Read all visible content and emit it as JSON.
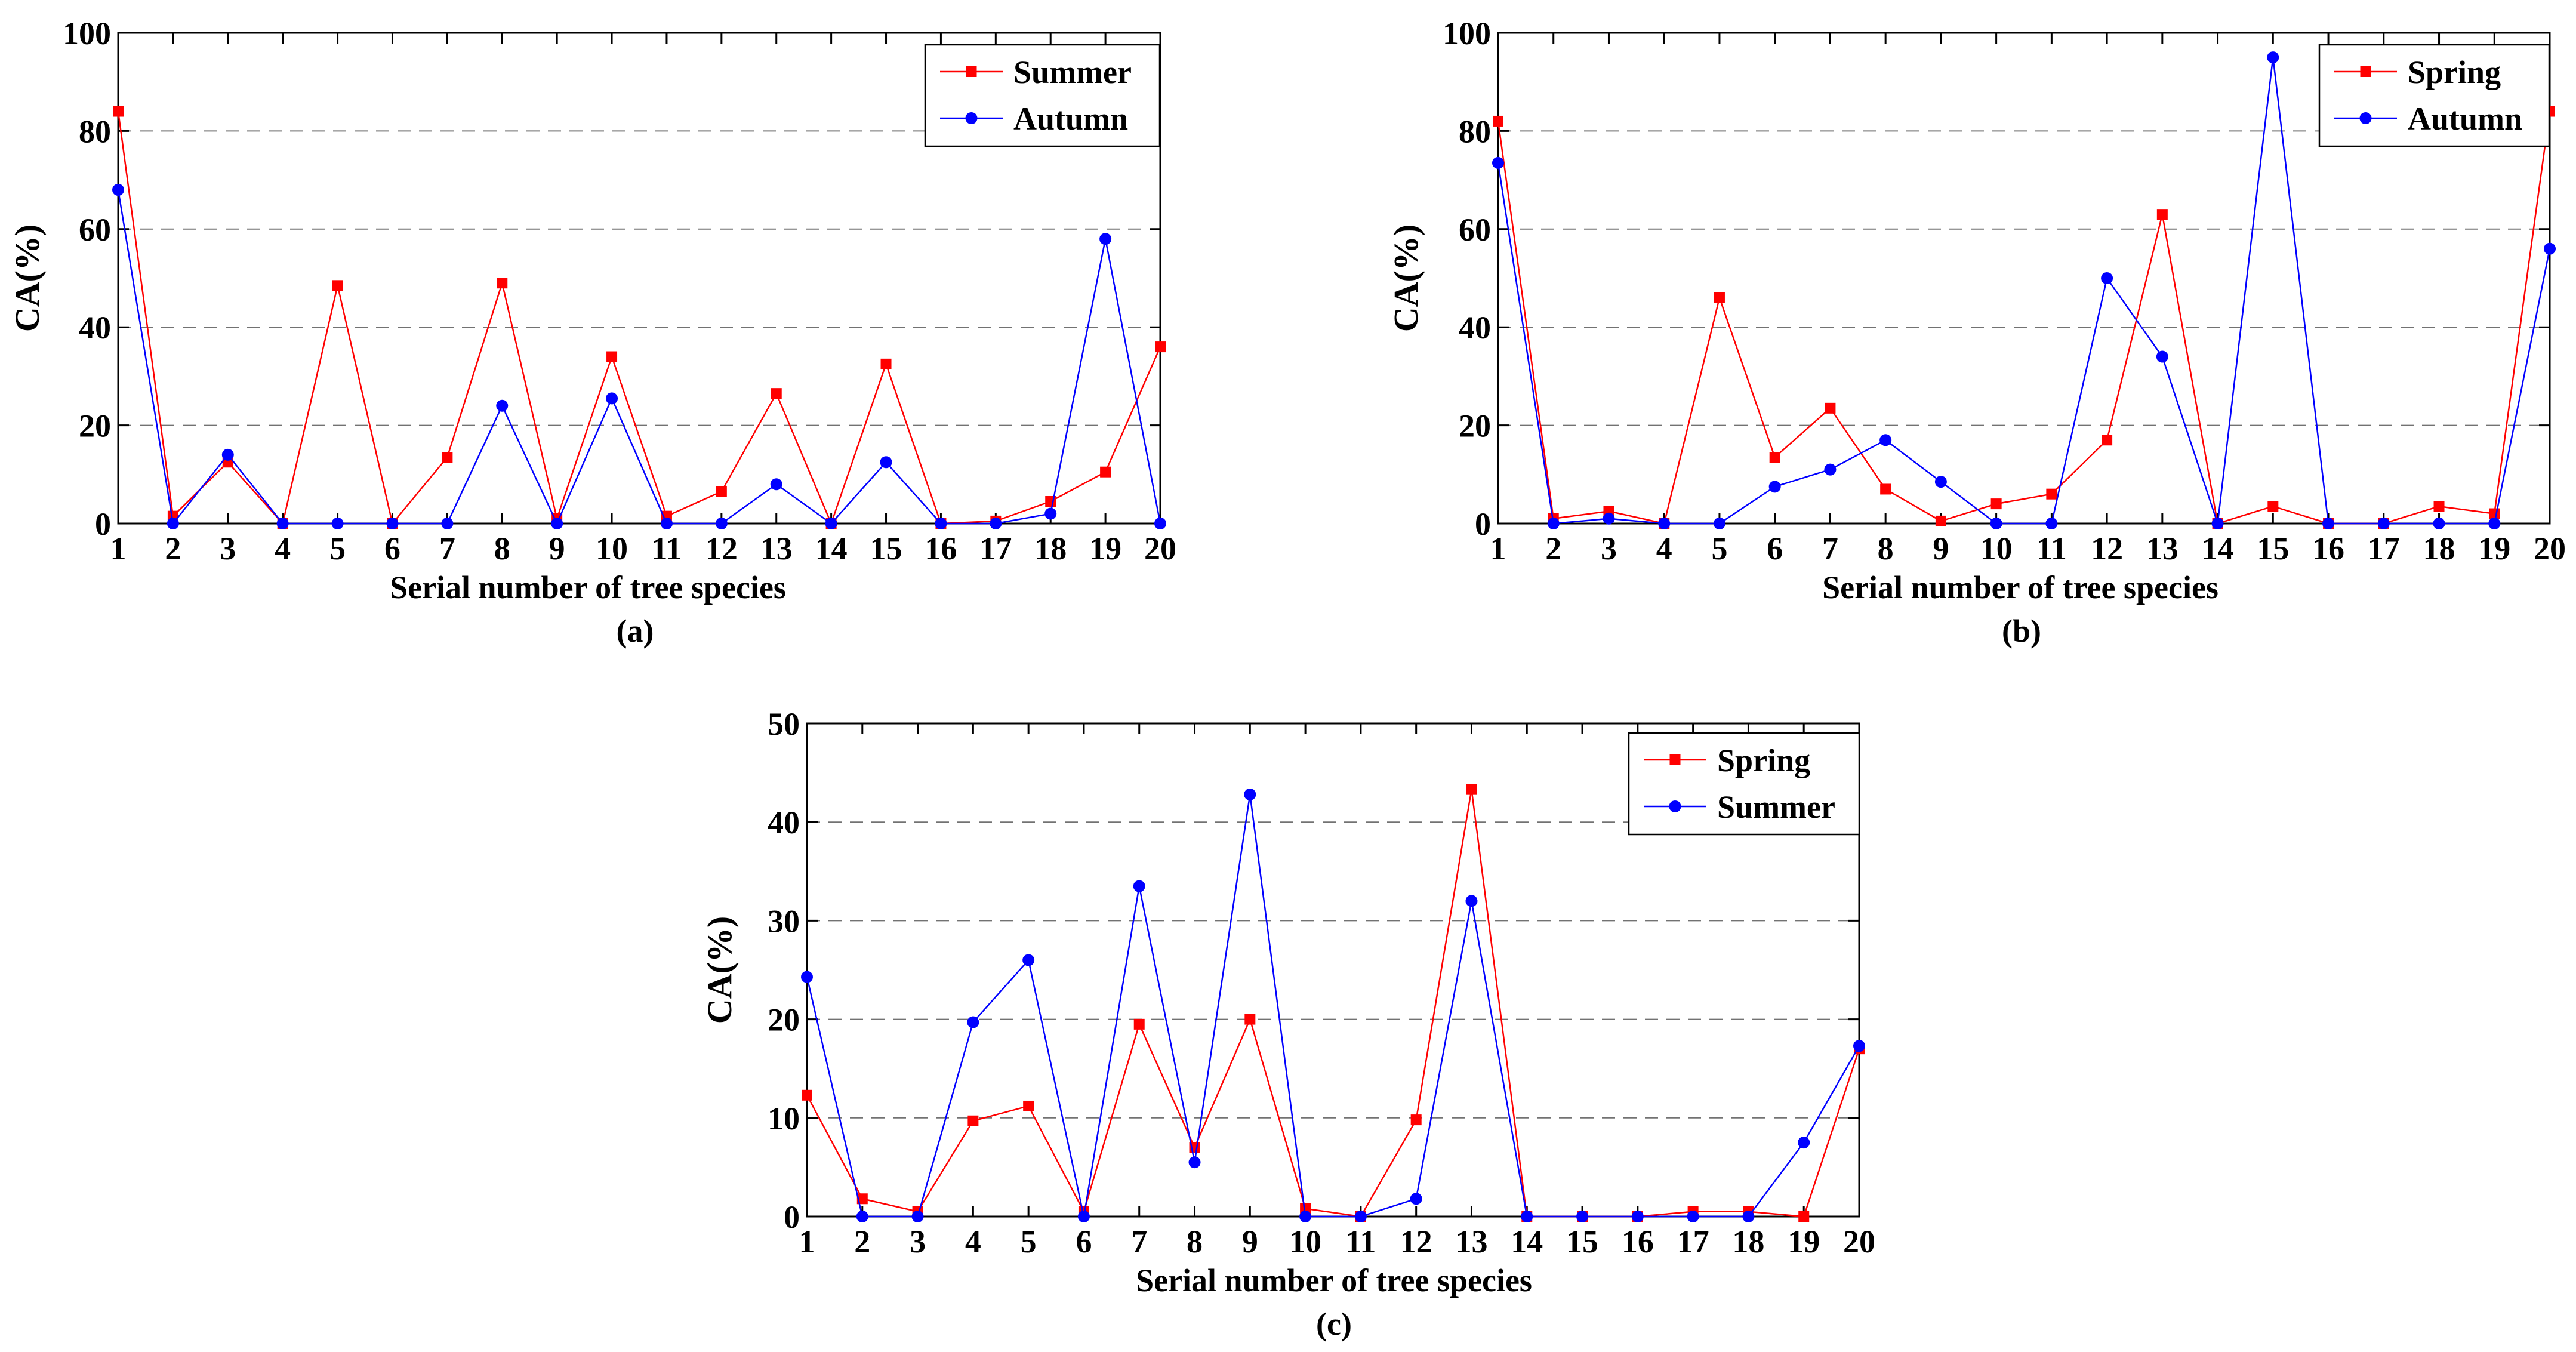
{
  "chart_data": [
    {
      "type": "line",
      "panel_label": "(a)",
      "title": "",
      "xlabel": "Serial number of tree species",
      "ylabel": "CA(%)",
      "ylim": [
        0,
        100
      ],
      "yticks": [
        0,
        20,
        40,
        60,
        80,
        100
      ],
      "categories": [
        "1",
        "2",
        "3",
        "4",
        "5",
        "6",
        "7",
        "8",
        "9",
        "10",
        "11",
        "12",
        "13",
        "14",
        "15",
        "16",
        "17",
        "18",
        "19",
        "20"
      ],
      "grid": "horizontal dashed",
      "legend_position": "top-right",
      "series": [
        {
          "name": "Summer",
          "color": "#ff0000",
          "marker": "square",
          "values": [
            84,
            1.5,
            12.5,
            0,
            48.5,
            0,
            13.5,
            49,
            1,
            34,
            1.5,
            6.5,
            26.5,
            0,
            32.5,
            0,
            0.5,
            4.5,
            10.5,
            36
          ]
        },
        {
          "name": "Autumn",
          "color": "#0000ff",
          "marker": "circle",
          "values": [
            68,
            0,
            14,
            0,
            0,
            0,
            0,
            24,
            0,
            25.5,
            0,
            0,
            8,
            0,
            12.5,
            0,
            0,
            2,
            58,
            0
          ]
        }
      ]
    },
    {
      "type": "line",
      "panel_label": "(b)",
      "title": "",
      "xlabel": "Serial number of tree species",
      "ylabel": "CA(%)",
      "ylim": [
        0,
        100
      ],
      "yticks": [
        0,
        20,
        40,
        60,
        80,
        100
      ],
      "categories": [
        "1",
        "2",
        "3",
        "4",
        "5",
        "6",
        "7",
        "8",
        "9",
        "10",
        "11",
        "12",
        "13",
        "14",
        "15",
        "16",
        "17",
        "18",
        "19",
        "20"
      ],
      "grid": "horizontal dashed",
      "legend_position": "top-right",
      "series": [
        {
          "name": "Spring",
          "color": "#ff0000",
          "marker": "square",
          "values": [
            82,
            1,
            2.5,
            0,
            46,
            13.5,
            23.5,
            7,
            0.5,
            4,
            6,
            17,
            63,
            0,
            3.5,
            0,
            0,
            3.5,
            2,
            84
          ]
        },
        {
          "name": "Autumn",
          "color": "#0000ff",
          "marker": "circle",
          "values": [
            73.5,
            0,
            1,
            0,
            0,
            7.5,
            11,
            17,
            8.5,
            0,
            0,
            50,
            34,
            0,
            95,
            0,
            0,
            0,
            0,
            56
          ]
        }
      ]
    },
    {
      "type": "line",
      "panel_label": "(c)",
      "title": "",
      "xlabel": "Serial number of tree species",
      "ylabel": "CA(%)",
      "ylim": [
        0,
        50
      ],
      "yticks": [
        0,
        10,
        20,
        30,
        40,
        50
      ],
      "categories": [
        "1",
        "2",
        "3",
        "4",
        "5",
        "6",
        "7",
        "8",
        "9",
        "10",
        "11",
        "12",
        "13",
        "14",
        "15",
        "16",
        "17",
        "18",
        "19",
        "20"
      ],
      "grid": "horizontal dashed",
      "legend_position": "top-right",
      "series": [
        {
          "name": "Spring",
          "color": "#ff0000",
          "marker": "square",
          "values": [
            12.3,
            1.8,
            0.5,
            9.7,
            11.2,
            0.5,
            19.5,
            7,
            20,
            0.8,
            0,
            9.8,
            43.3,
            0,
            0,
            0,
            0.5,
            0.5,
            0,
            17
          ]
        },
        {
          "name": "Summer",
          "color": "#0000ff",
          "marker": "circle",
          "values": [
            24.3,
            0,
            0,
            19.7,
            26,
            0,
            33.5,
            5.5,
            42.8,
            0,
            0,
            1.8,
            32,
            0,
            0,
            0,
            0,
            0,
            7.5,
            17.3
          ]
        }
      ]
    }
  ]
}
